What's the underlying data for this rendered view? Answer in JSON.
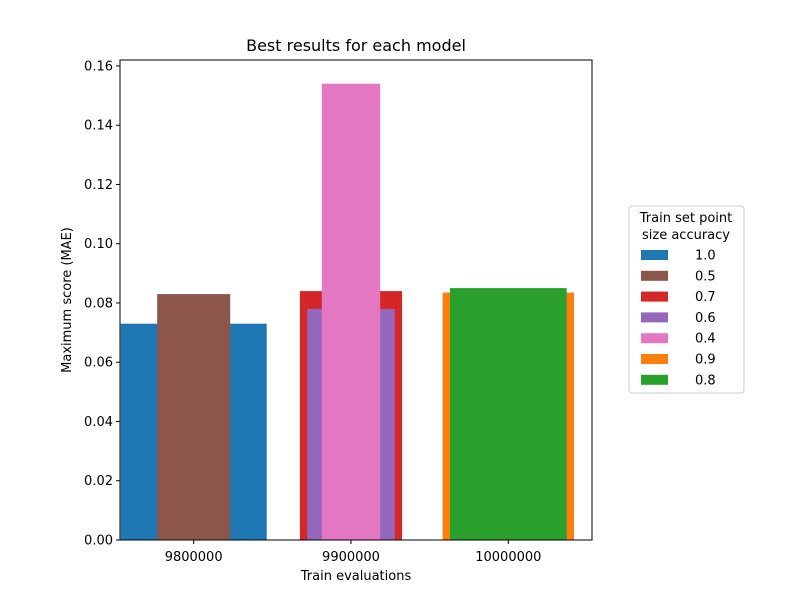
{
  "chart_data": {
    "type": "bar",
    "title": "Best results for each model",
    "xlabel": "Train evaluations",
    "ylabel": "Maximum score (MAE)",
    "ylim": [
      0,
      0.162
    ],
    "yticks": [
      "0.00",
      "0.02",
      "0.04",
      "0.06",
      "0.08",
      "0.10",
      "0.12",
      "0.14",
      "0.16"
    ],
    "yticks_values": [
      0,
      0.02,
      0.04,
      0.06,
      0.08,
      0.1,
      0.12,
      0.14,
      0.16
    ],
    "categories": [
      "9800000",
      "9900000",
      "10000000"
    ],
    "legend": {
      "title_lines": [
        "Train set point",
        "size accuracy"
      ],
      "placement": "right"
    },
    "series": [
      {
        "name": "1.0",
        "color": "#1f77b4",
        "category": "9800000",
        "value": 0.073,
        "rel_width": 1.0
      },
      {
        "name": "0.5",
        "color": "#8c564b",
        "category": "9800000",
        "value": 0.083,
        "rel_width": 0.5
      },
      {
        "name": "0.7",
        "color": "#d62728",
        "category": "9900000",
        "value": 0.084,
        "rel_width": 0.7
      },
      {
        "name": "0.6",
        "color": "#9467bd",
        "category": "9900000",
        "value": 0.078,
        "rel_width": 0.6
      },
      {
        "name": "0.4",
        "color": "#e377c2",
        "category": "9900000",
        "value": 0.154,
        "rel_width": 0.4
      },
      {
        "name": "0.9",
        "color": "#ff7f0e",
        "category": "10000000",
        "value": 0.0835,
        "rel_width": 0.9
      },
      {
        "name": "0.8",
        "color": "#2ca02c",
        "category": "10000000",
        "value": 0.085,
        "rel_width": 0.8
      }
    ]
  }
}
